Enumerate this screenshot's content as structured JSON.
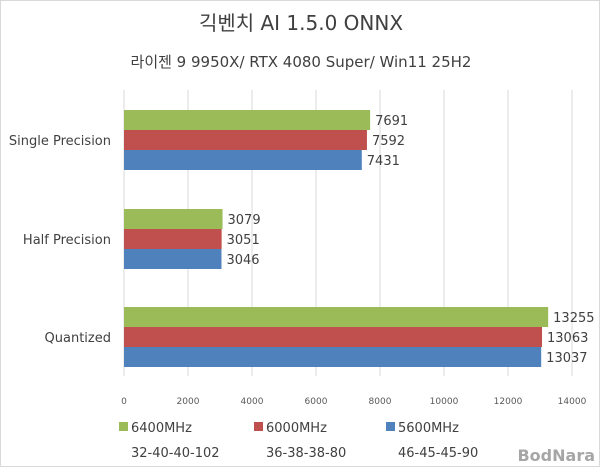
{
  "chart_data": {
    "type": "bar",
    "orientation": "horizontal",
    "title": "긱벤치 AI 1.5.0 ONNX",
    "subtitle": "라이젠 9 9950X/ RTX 4080 Super/ Win11 25H2",
    "categories": [
      "Single Precision",
      "Half Precision",
      "Quantized"
    ],
    "series": [
      {
        "name": "6400MHz",
        "timing": "32-40-40-102",
        "color": "#9bbb59",
        "values": [
          7691,
          3079,
          13255
        ]
      },
      {
        "name": "6000MHz",
        "timing": "36-38-38-80",
        "color": "#c0504d",
        "values": [
          7592,
          3051,
          13063
        ]
      },
      {
        "name": "5600MHz",
        "timing": "46-45-45-90",
        "color": "#4f81bd",
        "values": [
          7431,
          3046,
          13037
        ]
      }
    ],
    "xlim": [
      0,
      14000
    ],
    "xticks": [
      "0",
      "2000",
      "4000",
      "6000",
      "8000",
      "10000",
      "12000",
      "14000"
    ],
    "grid": true,
    "legend_position": "bottom",
    "xlabel": "",
    "ylabel": ""
  },
  "watermark": "BodNara"
}
